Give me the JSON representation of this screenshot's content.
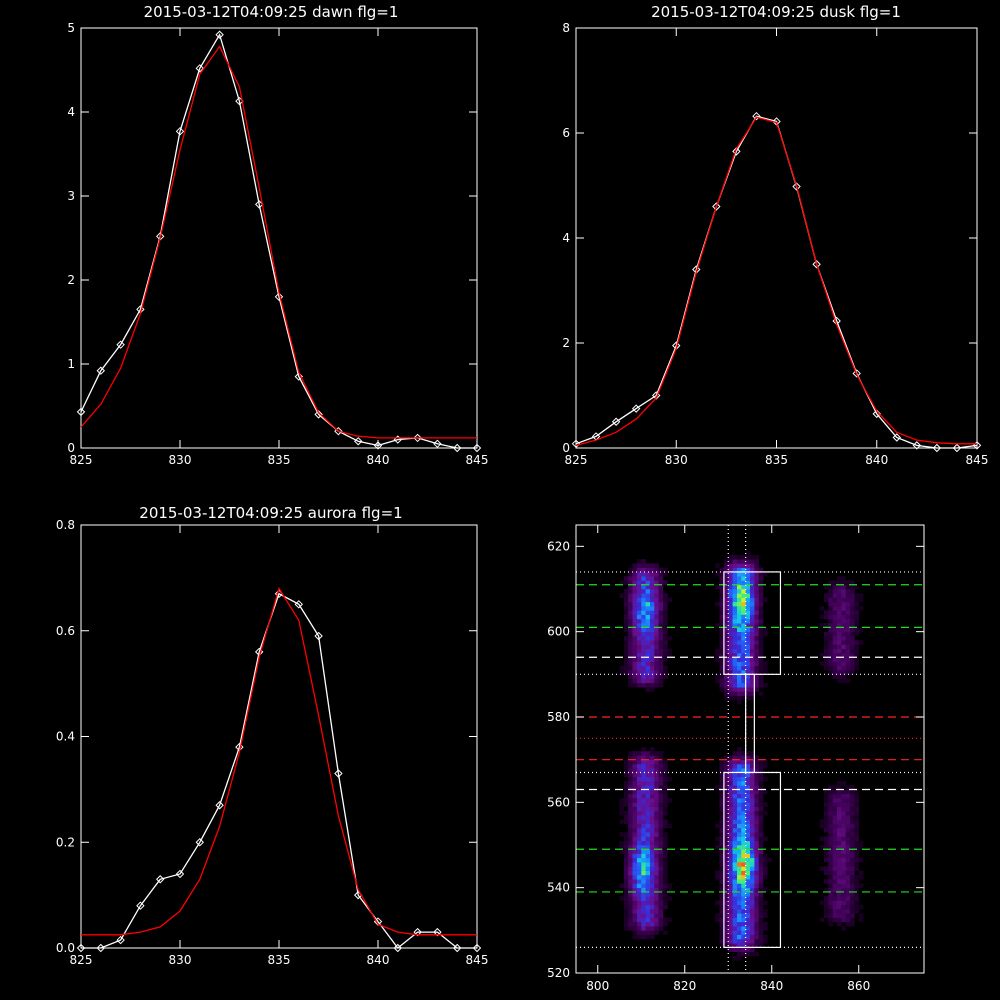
{
  "chart_data": [
    {
      "type": "line",
      "title": "2015-03-12T04:09:25 dawn flg=1",
      "xlim": [
        825,
        845
      ],
      "ylim": [
        0,
        5
      ],
      "xticks": [
        "825",
        "830",
        "835",
        "840",
        "845"
      ],
      "yticks": [
        "0",
        "1",
        "2",
        "3",
        "4",
        "5"
      ],
      "series": [
        {
          "role": "observed",
          "color": "#ffffff",
          "marker": "diamond",
          "x": [
            825,
            826,
            827,
            828,
            829,
            830,
            831,
            832,
            833,
            834,
            835,
            836,
            837,
            838,
            839,
            840,
            841,
            842,
            843,
            844,
            845
          ],
          "y": [
            0.43,
            0.92,
            1.23,
            1.65,
            2.52,
            3.77,
            4.52,
            4.92,
            4.13,
            2.9,
            1.8,
            0.85,
            0.4,
            0.2,
            0.08,
            0.03,
            0.1,
            0.12,
            0.05,
            0.0,
            0.0
          ]
        },
        {
          "role": "fit",
          "color": "#ff0000",
          "x": [
            825,
            826,
            827,
            828,
            829,
            830,
            831,
            832,
            833,
            834,
            835,
            836,
            837,
            838,
            839,
            840,
            841,
            842,
            843,
            844,
            845
          ],
          "y": [
            0.25,
            0.52,
            0.95,
            1.6,
            2.5,
            3.55,
            4.45,
            4.78,
            4.3,
            3.1,
            1.85,
            0.9,
            0.42,
            0.2,
            0.14,
            0.12,
            0.12,
            0.12,
            0.12,
            0.12,
            0.12
          ]
        }
      ]
    },
    {
      "type": "line",
      "title": "2015-03-12T04:09:25 dusk flg=1",
      "xlim": [
        825,
        845
      ],
      "ylim": [
        0,
        8
      ],
      "xticks": [
        "825",
        "830",
        "835",
        "840",
        "845"
      ],
      "yticks": [
        "0",
        "2",
        "4",
        "6",
        "8"
      ],
      "series": [
        {
          "role": "observed",
          "color": "#ffffff",
          "marker": "diamond",
          "x": [
            825,
            826,
            827,
            828,
            829,
            830,
            831,
            832,
            833,
            834,
            835,
            836,
            837,
            838,
            839,
            840,
            841,
            842,
            843,
            844,
            845
          ],
          "y": [
            0.08,
            0.22,
            0.5,
            0.75,
            1.0,
            1.95,
            3.4,
            4.6,
            5.65,
            6.32,
            6.22,
            4.98,
            3.5,
            2.42,
            1.42,
            0.65,
            0.2,
            0.05,
            0.0,
            0.0,
            0.05
          ]
        },
        {
          "role": "fit",
          "color": "#ff0000",
          "x": [
            825,
            826,
            827,
            828,
            829,
            830,
            831,
            832,
            833,
            834,
            835,
            836,
            837,
            838,
            839,
            840,
            841,
            842,
            843,
            844,
            845
          ],
          "y": [
            0.05,
            0.15,
            0.3,
            0.55,
            0.95,
            1.9,
            3.35,
            4.6,
            5.7,
            6.3,
            6.2,
            5.0,
            3.5,
            2.35,
            1.4,
            0.7,
            0.3,
            0.15,
            0.1,
            0.08,
            0.08
          ]
        }
      ]
    },
    {
      "type": "line",
      "title": "2015-03-12T04:09:25 aurora flg=1",
      "xlim": [
        825,
        845
      ],
      "ylim": [
        0,
        0.8
      ],
      "xticks": [
        "825",
        "830",
        "835",
        "840",
        "845"
      ],
      "yticks": [
        "0.0",
        "0.2",
        "0.4",
        "0.6",
        "0.8"
      ],
      "series": [
        {
          "role": "observed",
          "color": "#ffffff",
          "marker": "diamond",
          "x": [
            825,
            826,
            827,
            828,
            829,
            830,
            831,
            832,
            833,
            834,
            835,
            836,
            837,
            838,
            839,
            840,
            841,
            842,
            843,
            844,
            845
          ],
          "y": [
            0.0,
            0.0,
            0.015,
            0.08,
            0.13,
            0.14,
            0.2,
            0.27,
            0.38,
            0.56,
            0.67,
            0.65,
            0.59,
            0.33,
            0.1,
            0.05,
            0.0,
            0.03,
            0.03,
            0.0,
            0.0
          ]
        },
        {
          "role": "fit",
          "color": "#ff0000",
          "x": [
            825,
            826,
            827,
            828,
            829,
            830,
            831,
            832,
            833,
            834,
            835,
            836,
            837,
            838,
            839,
            840,
            841,
            842,
            843,
            844,
            845
          ],
          "y": [
            0.025,
            0.025,
            0.025,
            0.03,
            0.04,
            0.07,
            0.13,
            0.23,
            0.37,
            0.55,
            0.68,
            0.62,
            0.44,
            0.25,
            0.11,
            0.045,
            0.03,
            0.025,
            0.025,
            0.025,
            0.025
          ]
        }
      ]
    },
    {
      "type": "heatmap",
      "xlim": [
        795,
        875
      ],
      "ylim": [
        520,
        625
      ],
      "xticks": [
        "800",
        "820",
        "840",
        "860"
      ],
      "yticks": [
        "520",
        "540",
        "560",
        "580",
        "600",
        "620"
      ],
      "emission_columns": [
        {
          "x": 811,
          "y_ranges": [
            [
              590,
              612
            ],
            [
              532,
              568
            ]
          ],
          "peak": 0.7
        },
        {
          "x": 833,
          "y_ranges": [
            [
              588,
              613
            ],
            [
              528,
              567
            ]
          ],
          "peak": 1.0
        },
        {
          "x": 856,
          "y_ranges": [
            [
              592,
              608
            ],
            [
              534,
              560
            ]
          ],
          "peak": 0.35
        }
      ],
      "hot_spots": [
        [
          833,
          607,
          0.85
        ],
        [
          834,
          545,
          1.0
        ],
        [
          810,
          544,
          0.75
        ],
        [
          811,
          605,
          0.55
        ]
      ],
      "colorscale": [
        "#000000",
        "#3a0050",
        "#6a0d8a",
        "#3a2bd6",
        "#1f6cff",
        "#15c8e8",
        "#3cf07a",
        "#d8f020",
        "#ff5a1a"
      ],
      "vertical_lines": [
        {
          "x": 830,
          "style": "dotted",
          "color": "#ffffff"
        },
        {
          "x": 834,
          "style": "dotted",
          "color": "#ffffff"
        }
      ],
      "horizontal_lines": [
        {
          "y": 614,
          "style": "dotted",
          "color": "#ffffff"
        },
        {
          "y": 611,
          "style": "dashed",
          "color": "#22dd22"
        },
        {
          "y": 601,
          "style": "dashed",
          "color": "#22dd22"
        },
        {
          "y": 594,
          "style": "dashed",
          "color": "#ffffff"
        },
        {
          "y": 590,
          "style": "dotted",
          "color": "#ffffff"
        },
        {
          "y": 580,
          "style": "dashed",
          "color": "#ff2222"
        },
        {
          "y": 575,
          "style": "dotted",
          "color": "#ff2222"
        },
        {
          "y": 570,
          "style": "dashed",
          "color": "#ff2222"
        },
        {
          "y": 567,
          "style": "dotted",
          "color": "#ffffff"
        },
        {
          "y": 563,
          "style": "dashed",
          "color": "#ffffff"
        },
        {
          "y": 549,
          "style": "dashed",
          "color": "#22dd22"
        },
        {
          "y": 539,
          "style": "dashed",
          "color": "#22dd22"
        },
        {
          "y": 526,
          "style": "dotted",
          "color": "#ffffff"
        }
      ],
      "windows": [
        {
          "x": [
            829,
            842
          ],
          "y": [
            590,
            614
          ]
        },
        {
          "x": [
            829,
            842
          ],
          "y": [
            526,
            567
          ]
        }
      ],
      "connector": {
        "x": [
          834,
          836
        ],
        "y": [
          567,
          590
        ]
      }
    }
  ]
}
